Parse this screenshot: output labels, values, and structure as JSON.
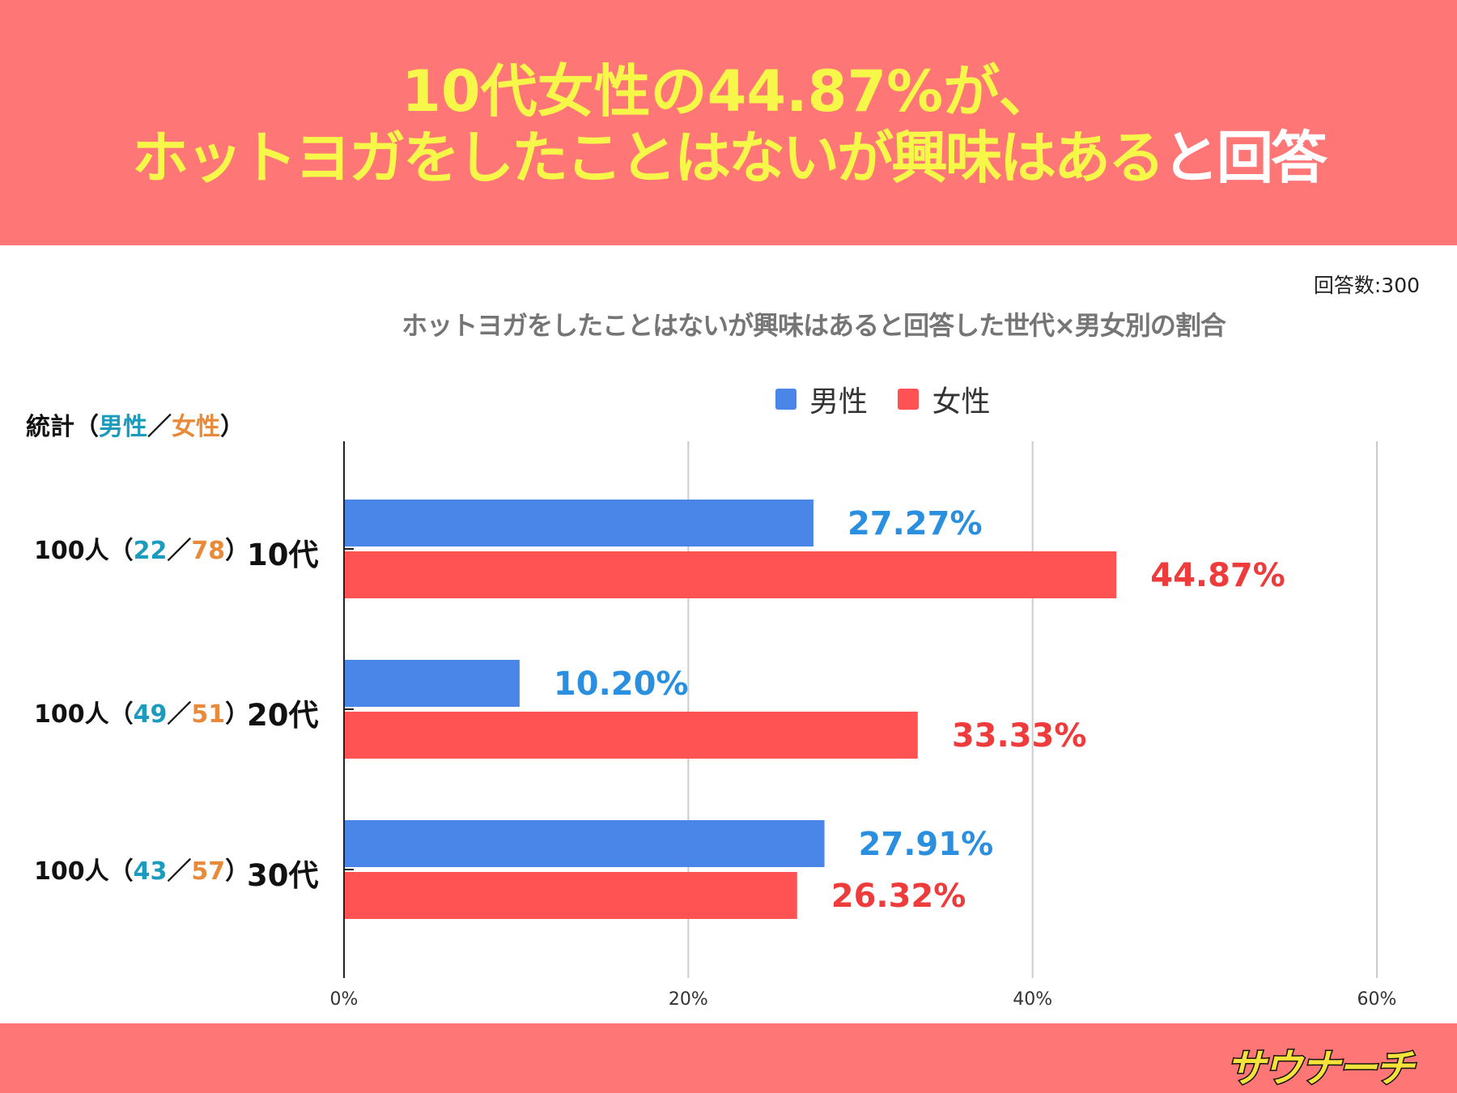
{
  "header": {
    "line1": "10代女性の44.87%が、",
    "line2_main": "ホットヨガをしたことはないが興味はある",
    "line2_white": "と回答"
  },
  "response_count": "回答数:300",
  "stats": {
    "header_prefix": "統計（",
    "header_male": "男性",
    "header_sep": "／",
    "header_female": "女性",
    "header_suffix": "）",
    "rows": [
      {
        "total": "100人（",
        "male": "22",
        "sep": "／",
        "female": "78",
        "close": "）"
      },
      {
        "total": "100人（",
        "male": "49",
        "sep": "／",
        "female": "51",
        "close": "）"
      },
      {
        "total": "100人（",
        "male": "43",
        "sep": "／",
        "female": "57",
        "close": "）"
      }
    ]
  },
  "colors": {
    "male": "#4a86e8",
    "female": "#ff5252",
    "male_label": "#2b8fe0",
    "female_label": "#ee3b3b",
    "header_bg": "#ff7676"
  },
  "logo": {
    "text": "サウナーチ"
  },
  "chart_data": {
    "type": "bar",
    "orientation": "horizontal",
    "title": "ホットヨガをしたことはないが興味はあると回答した世代×男女別の割合",
    "categories": [
      "10代",
      "20代",
      "30代"
    ],
    "series": [
      {
        "name": "男性",
        "values": [
          27.27,
          10.2,
          27.91
        ],
        "labels": [
          "27.27%",
          "10.20%",
          "27.91%"
        ]
      },
      {
        "name": "女性",
        "values": [
          44.87,
          33.33,
          26.32
        ],
        "labels": [
          "44.87%",
          "33.33%",
          "26.32%"
        ]
      }
    ],
    "xlim": [
      0,
      60
    ],
    "xticks": [
      0,
      20,
      40,
      60
    ],
    "xtick_labels": [
      "0%",
      "20%",
      "40%",
      "60%"
    ],
    "grid": true,
    "legend": "top"
  }
}
